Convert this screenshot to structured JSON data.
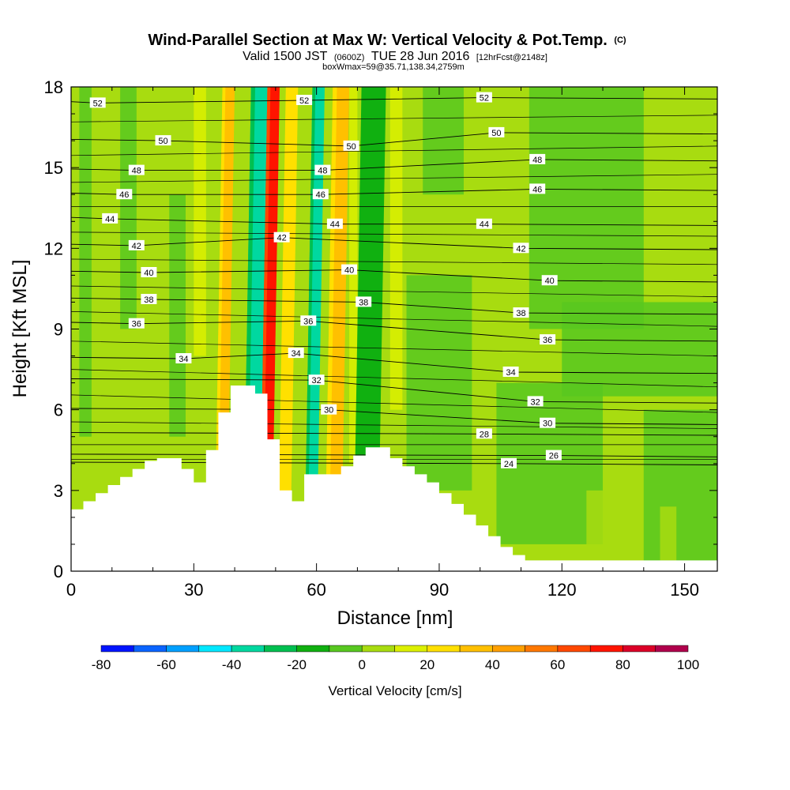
{
  "chart_data": {
    "type": "cross-section contour plot",
    "title": "Wind-Parallel Section at Max W: Vertical Velocity & Pot.Temp.",
    "title_mark": "(C)",
    "subtitle_main": "Valid 1500 JST",
    "subtitle_utc": "(0600Z)",
    "subtitle_date": "TUE 28 Jun 2016",
    "subtitle_fcst": "[12hrFcst@2148z]",
    "subtitle2": "boxWmax=59@35.71,138.34,2759m",
    "xlabel": "Distance [nm]",
    "ylabel": "Height [Kft MSL]",
    "xlim": [
      0,
      158
    ],
    "ylim": [
      0,
      18
    ],
    "xticks": [
      0,
      30,
      60,
      90,
      120,
      150
    ],
    "yticks": [
      0,
      3,
      6,
      9,
      12,
      15,
      18
    ],
    "colorbar": {
      "label": "Vertical Velocity [cm/s]",
      "ticks": [
        -80,
        -60,
        -40,
        -20,
        0,
        20,
        40,
        60,
        80,
        100
      ],
      "levels": [
        -80,
        -70,
        -60,
        -50,
        -40,
        -30,
        -20,
        -10,
        0,
        10,
        20,
        30,
        40,
        50,
        60,
        70,
        80,
        90,
        100
      ],
      "colors": [
        "#0014ff",
        "#0a64ff",
        "#00a0ff",
        "#00e8ff",
        "#00d8a0",
        "#00c050",
        "#10b010",
        "#58c820",
        "#a8dc10",
        "#dcf000",
        "#ffe000",
        "#ffc000",
        "#ffa000",
        "#ff7800",
        "#ff4800",
        "#ff1400",
        "#dc0028",
        "#b0004c",
        "#780078"
      ]
    },
    "theta_contour_labels": [
      {
        "value": "52",
        "x": 6.5,
        "y": 17.4
      },
      {
        "value": "52",
        "x": 57,
        "y": 17.5
      },
      {
        "value": "52",
        "x": 101,
        "y": 17.6
      },
      {
        "value": "50",
        "x": 22.5,
        "y": 16.0
      },
      {
        "value": "50",
        "x": 68.5,
        "y": 15.8
      },
      {
        "value": "50",
        "x": 104,
        "y": 16.3
      },
      {
        "value": "48",
        "x": 16,
        "y": 14.9
      },
      {
        "value": "48",
        "x": 61.5,
        "y": 14.9
      },
      {
        "value": "48",
        "x": 114,
        "y": 15.3
      },
      {
        "value": "46",
        "x": 13,
        "y": 14.0
      },
      {
        "value": "46",
        "x": 61,
        "y": 14.0
      },
      {
        "value": "46",
        "x": 114,
        "y": 14.2
      },
      {
        "value": "44",
        "x": 9.5,
        "y": 13.1
      },
      {
        "value": "44",
        "x": 64.5,
        "y": 12.9
      },
      {
        "value": "44",
        "x": 101,
        "y": 12.9
      },
      {
        "value": "42",
        "x": 16,
        "y": 12.1
      },
      {
        "value": "42",
        "x": 51.5,
        "y": 12.4
      },
      {
        "value": "42",
        "x": 110,
        "y": 12.0
      },
      {
        "value": "40",
        "x": 19,
        "y": 11.1
      },
      {
        "value": "40",
        "x": 68,
        "y": 11.2
      },
      {
        "value": "40",
        "x": 117,
        "y": 10.8
      },
      {
        "value": "38",
        "x": 19,
        "y": 10.1
      },
      {
        "value": "38",
        "x": 71.5,
        "y": 10.0
      },
      {
        "value": "38",
        "x": 110,
        "y": 9.6
      },
      {
        "value": "36",
        "x": 16,
        "y": 9.2
      },
      {
        "value": "36",
        "x": 58,
        "y": 9.3
      },
      {
        "value": "36",
        "x": 116.5,
        "y": 8.6
      },
      {
        "value": "34",
        "x": 27.5,
        "y": 7.9
      },
      {
        "value": "34",
        "x": 55,
        "y": 8.1
      },
      {
        "value": "34",
        "x": 107.5,
        "y": 7.4
      },
      {
        "value": "32",
        "x": 60,
        "y": 7.1
      },
      {
        "value": "32",
        "x": 113.5,
        "y": 6.3
      },
      {
        "value": "30",
        "x": 63,
        "y": 6.0
      },
      {
        "value": "30",
        "x": 116.5,
        "y": 5.5
      },
      {
        "value": "28",
        "x": 101,
        "y": 5.1
      },
      {
        "value": "26",
        "x": 118,
        "y": 4.3
      },
      {
        "value": "24",
        "x": 107,
        "y": 4.0
      }
    ],
    "terrain_heights_kft": [
      {
        "x": 0,
        "h": 2.3
      },
      {
        "x": 3,
        "h": 2.6
      },
      {
        "x": 6,
        "h": 2.9
      },
      {
        "x": 9,
        "h": 3.2
      },
      {
        "x": 12,
        "h": 3.5
      },
      {
        "x": 15,
        "h": 3.8
      },
      {
        "x": 18,
        "h": 4.1
      },
      {
        "x": 21,
        "h": 4.2
      },
      {
        "x": 24,
        "h": 4.2
      },
      {
        "x": 27,
        "h": 3.8
      },
      {
        "x": 30,
        "h": 3.3
      },
      {
        "x": 33,
        "h": 4.5
      },
      {
        "x": 36,
        "h": 5.9
      },
      {
        "x": 39,
        "h": 6.9
      },
      {
        "x": 42,
        "h": 6.9
      },
      {
        "x": 45,
        "h": 6.6
      },
      {
        "x": 48,
        "h": 4.9
      },
      {
        "x": 51,
        "h": 3.0
      },
      {
        "x": 54,
        "h": 2.6
      },
      {
        "x": 57,
        "h": 3.6
      },
      {
        "x": 60,
        "h": 3.6
      },
      {
        "x": 63,
        "h": 3.6
      },
      {
        "x": 66,
        "h": 3.9
      },
      {
        "x": 69,
        "h": 4.3
      },
      {
        "x": 72,
        "h": 4.6
      },
      {
        "x": 75,
        "h": 4.6
      },
      {
        "x": 78,
        "h": 4.2
      },
      {
        "x": 81,
        "h": 3.9
      },
      {
        "x": 84,
        "h": 3.6
      },
      {
        "x": 87,
        "h": 3.3
      },
      {
        "x": 90,
        "h": 2.9
      },
      {
        "x": 93,
        "h": 2.5
      },
      {
        "x": 96,
        "h": 2.1
      },
      {
        "x": 99,
        "h": 1.7
      },
      {
        "x": 102,
        "h": 1.3
      },
      {
        "x": 105,
        "h": 0.9
      },
      {
        "x": 108,
        "h": 0.6
      },
      {
        "x": 111,
        "h": 0.4
      },
      {
        "x": 158,
        "h": 0.4
      }
    ],
    "vertical_velocity_bands": [
      {
        "x": 36.5,
        "width": 3,
        "w": 30
      },
      {
        "x": 44,
        "width": 4,
        "w": -40
      },
      {
        "x": 47.5,
        "width": 3,
        "w": 70
      },
      {
        "x": 52,
        "width": 3,
        "w": 20
      },
      {
        "x": 58.5,
        "width": 3,
        "w": -40
      },
      {
        "x": 64,
        "width": 4,
        "w": 30
      },
      {
        "x": 72,
        "width": 6,
        "w": -20
      }
    ]
  }
}
